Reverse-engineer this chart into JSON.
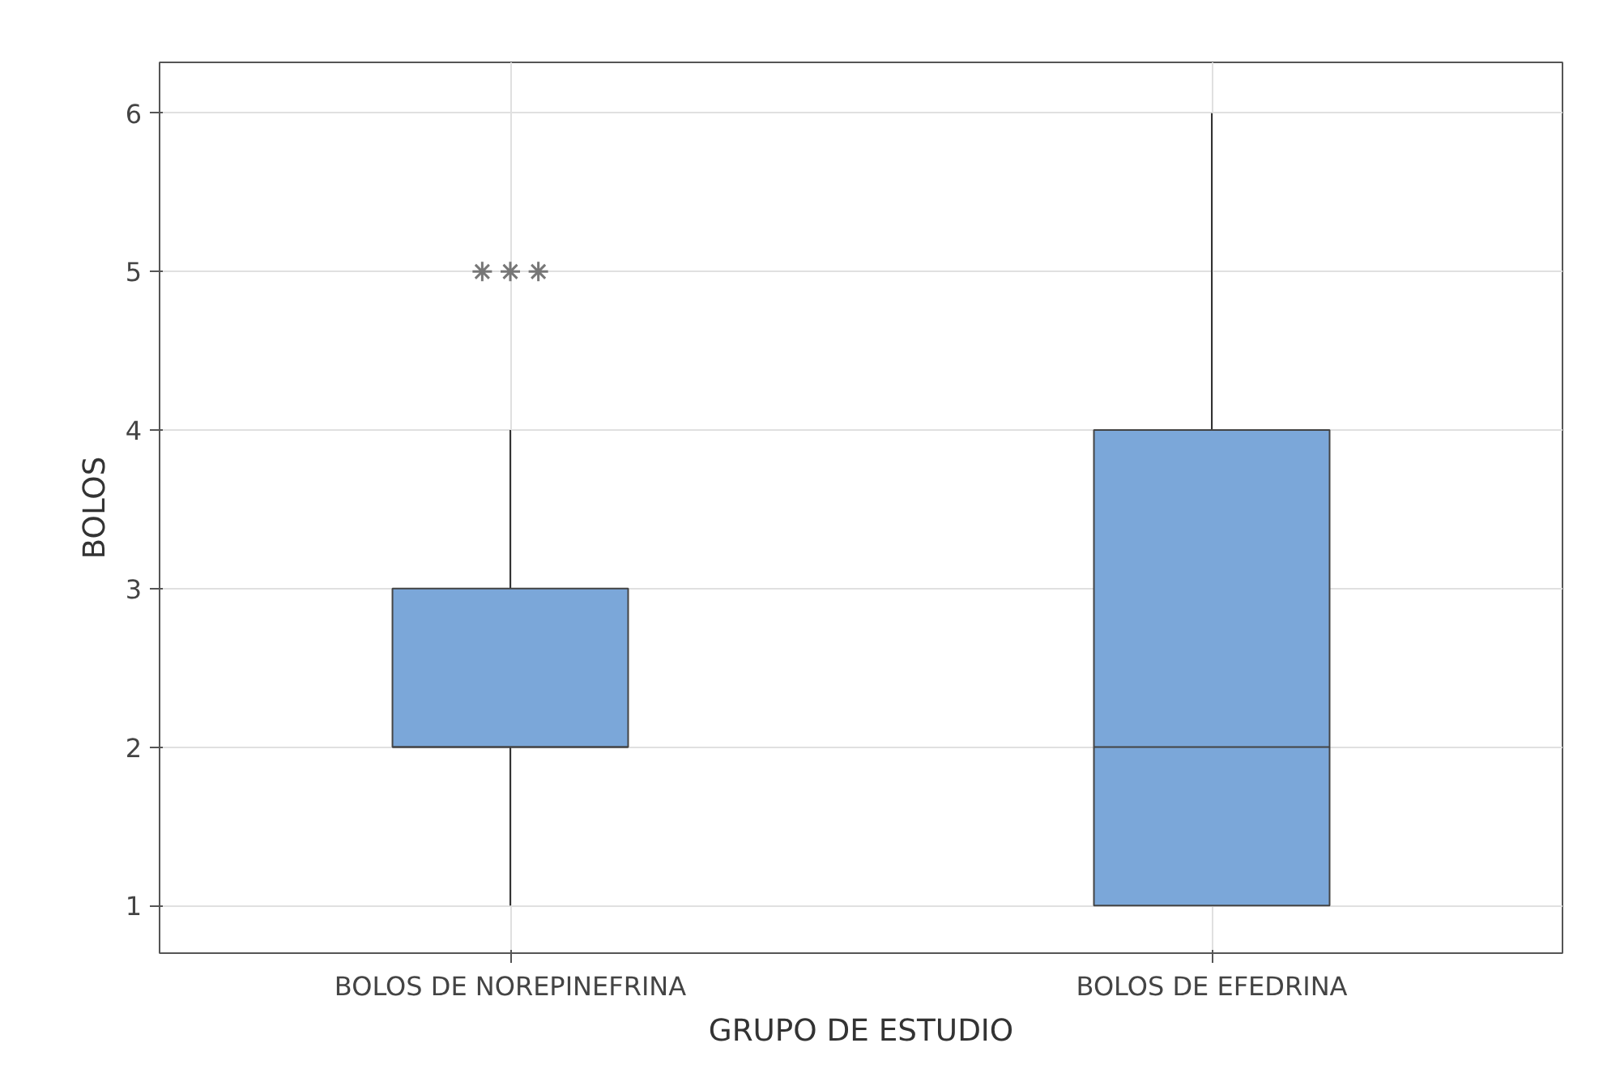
{
  "chart_data": {
    "type": "box",
    "xlabel": "GRUPO DE ESTUDIO",
    "ylabel": "BOLOS",
    "categories": [
      "BOLOS DE NOREPINEFRINA",
      "BOLOS DE EFEDRINA"
    ],
    "boxes": [
      {
        "low": 1,
        "q1": 2,
        "median": 2,
        "q3": 3,
        "high": 4,
        "outliers": [
          5,
          5,
          5
        ]
      },
      {
        "low": 1,
        "q1": 1,
        "median": 2,
        "q3": 4,
        "high": 6
      }
    ],
    "color": "#7ba7d9",
    "ylim": [
      0.7,
      6.32
    ],
    "yticks": [
      1,
      2,
      3,
      4,
      5,
      6
    ],
    "grid": true
  }
}
